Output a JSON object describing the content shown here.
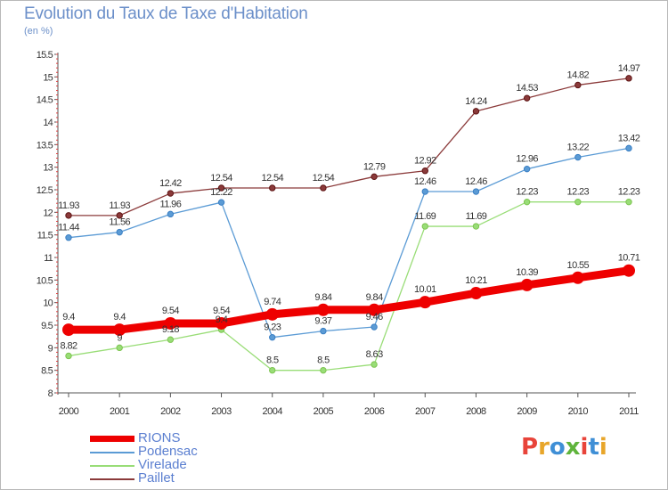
{
  "title": "Evolution du Taux de Taxe d'Habitation",
  "unit_label": "(en %)",
  "logo_text": "Proxiti",
  "logo_colors": [
    "#e8443a",
    "#e8a62a",
    "#3f8fd6",
    "#5fb43c",
    "#e8443a",
    "#3f8fd6",
    "#e8a62a"
  ],
  "chart_data": {
    "type": "line",
    "x": [
      "2000",
      "2001",
      "2002",
      "2003",
      "2004",
      "2005",
      "2006",
      "2007",
      "2008",
      "2009",
      "2010",
      "2011"
    ],
    "ylim": [
      8,
      15.5
    ],
    "yticks": [
      "8",
      "8.5",
      "9",
      "9.5",
      "10",
      "10.5",
      "11",
      "11.5",
      "12",
      "12.5",
      "13",
      "13.5",
      "14",
      "14.5",
      "15",
      "15.5"
    ],
    "grid": false,
    "legend_position": "bottom-left",
    "series": [
      {
        "name": "RIONS",
        "color": "#ee0000",
        "emphasis": true,
        "values": [
          9.4,
          9.4,
          9.54,
          9.54,
          9.74,
          9.84,
          9.84,
          10.01,
          10.21,
          10.39,
          10.55,
          10.71
        ],
        "labels": [
          "9.4",
          "9.4",
          "9.54",
          "9.54",
          "9.74",
          "9.84",
          "9.84",
          "10.01",
          "10.21",
          "10.39",
          "10.55",
          "10.71"
        ]
      },
      {
        "name": "Podensac",
        "color": "#5b9bd5",
        "marker_color": "#3a7fc4",
        "values": [
          11.44,
          11.56,
          11.96,
          12.22,
          9.23,
          9.37,
          9.46,
          12.46,
          12.46,
          12.96,
          13.22,
          13.42
        ],
        "labels": [
          "11.44",
          "11.56",
          "11.96",
          "12.22",
          "9.23",
          "9.37",
          "9.46",
          "12.46",
          "12.46",
          "12.96",
          "13.22",
          "13.42"
        ]
      },
      {
        "name": "Virelade",
        "color": "#99dd77",
        "marker_color": "#7cc44f",
        "values": [
          8.82,
          9.0,
          9.18,
          9.4,
          8.5,
          8.5,
          8.63,
          11.69,
          11.69,
          12.23,
          12.23,
          12.23
        ],
        "labels": [
          "8.82",
          "9",
          "9.18",
          "9.4",
          "8.5",
          "8.5",
          "8.63",
          "11.69",
          "11.69",
          "12.23",
          "12.23",
          "12.23"
        ]
      },
      {
        "name": "Paillet",
        "color": "#8b3a3a",
        "marker_color": "#5e1414",
        "values": [
          11.93,
          11.93,
          12.42,
          12.54,
          12.54,
          12.54,
          12.79,
          12.92,
          14.24,
          14.53,
          14.82,
          14.97
        ],
        "labels": [
          "11.93",
          "11.93",
          "12.42",
          "12.54",
          "12.54",
          "12.54",
          "12.79",
          "12.92",
          "14.24",
          "14.53",
          "14.82",
          "14.97"
        ]
      }
    ]
  }
}
